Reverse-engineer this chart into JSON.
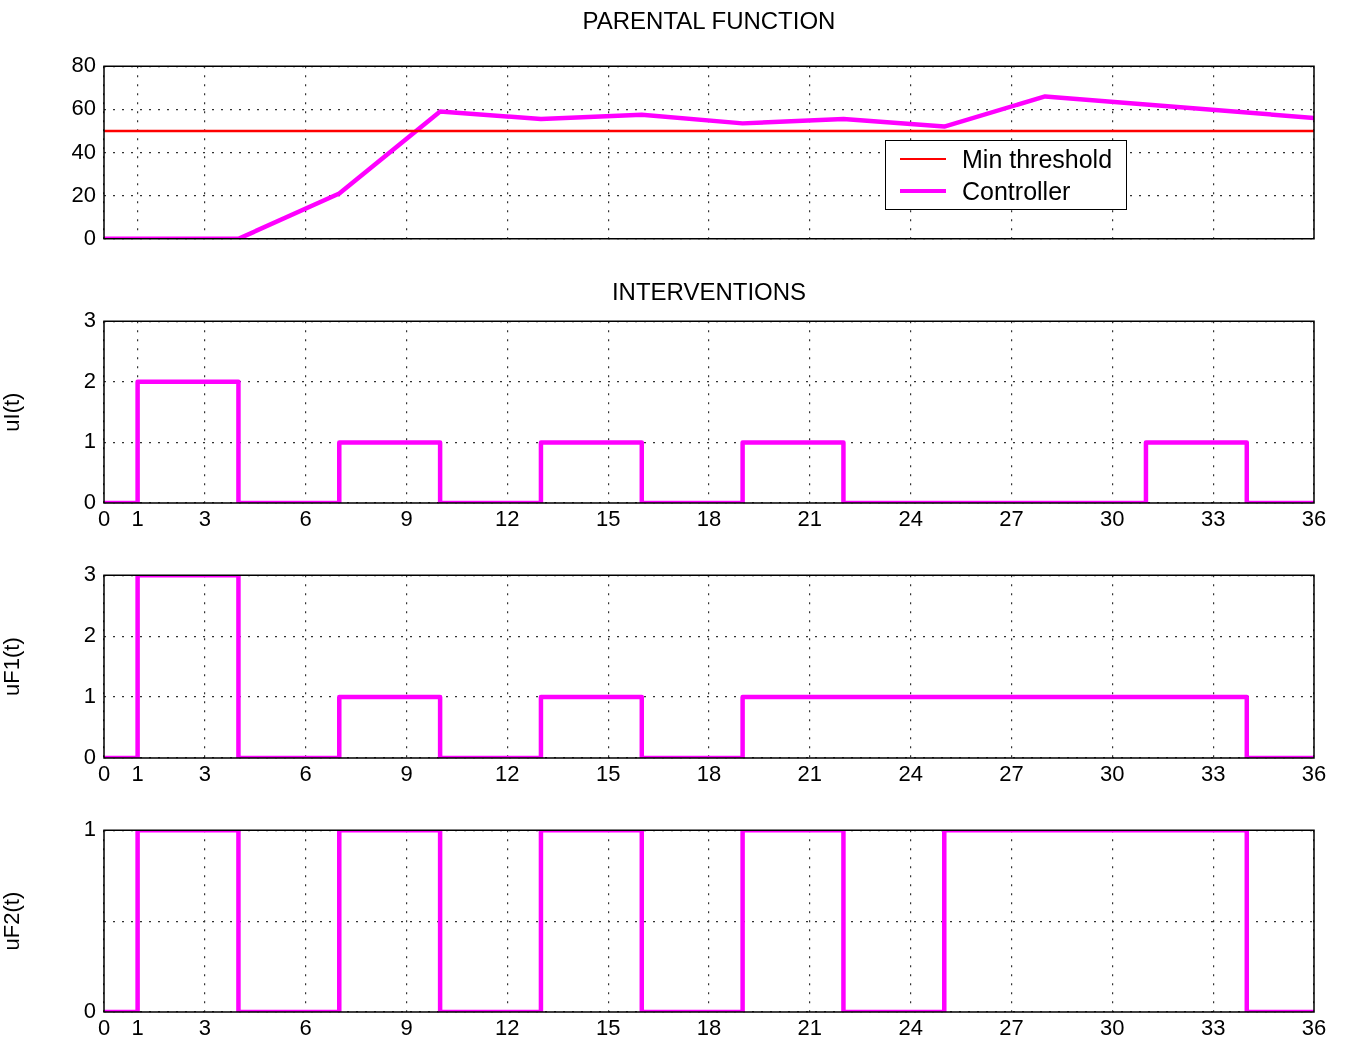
{
  "chart_data": [
    {
      "type": "line",
      "title": "PARENTAL FUNCTION",
      "xlim": [
        0,
        36
      ],
      "xticks": [
        0,
        1,
        3,
        6,
        9,
        12,
        15,
        18,
        21,
        24,
        27,
        30,
        33,
        36
      ],
      "ylim": [
        0,
        80
      ],
      "yticks": [
        0,
        20,
        40,
        60,
        80
      ],
      "tick_labels": "y",
      "grid": true,
      "legend": "right",
      "series": [
        {
          "name": "Min threshold",
          "color": "#ff0000",
          "x": [
            0,
            36
          ],
          "values": [
            50,
            50
          ]
        },
        {
          "name": "Controller",
          "color": "#ff00ff",
          "x": [
            0,
            4,
            7,
            10,
            13,
            16,
            19,
            22,
            25,
            28,
            36
          ],
          "values": [
            0,
            0,
            21,
            59,
            55.5,
            57.5,
            53.5,
            55.5,
            52,
            66,
            56
          ]
        }
      ]
    },
    {
      "type": "step",
      "title": "INTERVENTIONS",
      "ylabel": "uI(t)",
      "xlim": [
        0,
        36
      ],
      "xticks": [
        0,
        1,
        3,
        6,
        9,
        12,
        15,
        18,
        21,
        24,
        27,
        30,
        33,
        36
      ],
      "ylim": [
        0,
        3
      ],
      "yticks": [
        0,
        1,
        2,
        3
      ],
      "grid": true,
      "series": [
        {
          "color": "#ff00ff",
          "x": [
            0,
            1,
            4,
            7,
            10,
            13,
            16,
            19,
            22,
            31,
            34,
            36
          ],
          "values": [
            0,
            2,
            0,
            1,
            0,
            1,
            0,
            1,
            0,
            1,
            0,
            0
          ]
        }
      ]
    },
    {
      "type": "step",
      "ylabel": "uF1(t)",
      "xlim": [
        0,
        36
      ],
      "xticks": [
        0,
        1,
        3,
        6,
        9,
        12,
        15,
        18,
        21,
        24,
        27,
        30,
        33,
        36
      ],
      "ylim": [
        0,
        3
      ],
      "yticks": [
        0,
        1,
        2,
        3
      ],
      "grid": true,
      "series": [
        {
          "color": "#ff00ff",
          "x": [
            0,
            1,
            4,
            7,
            10,
            13,
            16,
            19,
            34,
            36
          ],
          "values": [
            0,
            3,
            0,
            1,
            0,
            1,
            0,
            1,
            0,
            0
          ]
        }
      ]
    },
    {
      "type": "step",
      "ylabel": "uF2(t)",
      "xlim": [
        0,
        36
      ],
      "xticks": [
        0,
        1,
        3,
        6,
        9,
        12,
        15,
        18,
        21,
        24,
        27,
        30,
        33,
        36
      ],
      "ylim": [
        0,
        1
      ],
      "yticks": [
        0,
        {
          "value": 0.5,
          "label": null
        },
        1
      ],
      "grid": true,
      "series": [
        {
          "color": "#ff00ff",
          "x": [
            0,
            1,
            4,
            7,
            10,
            13,
            16,
            19,
            22,
            25,
            34,
            36
          ],
          "values": [
            0,
            1,
            0,
            1,
            0,
            1,
            0,
            1,
            0,
            1,
            0,
            0
          ]
        }
      ]
    }
  ]
}
